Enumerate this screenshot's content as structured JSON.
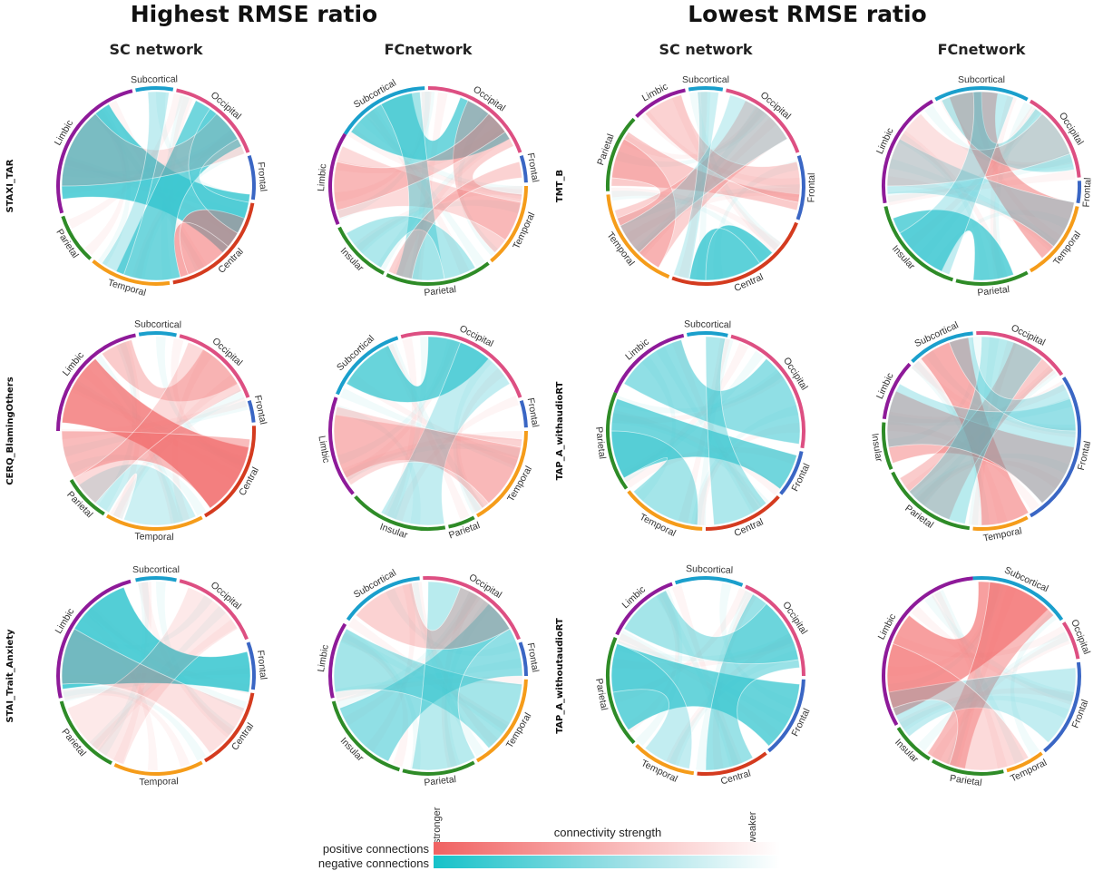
{
  "headers": {
    "left_title": "Highest RMSE ratio",
    "right_title": "Lowest RMSE ratio",
    "columns": [
      "SC network",
      "FCnetwork",
      "SC network",
      "FCnetwork"
    ]
  },
  "rows": [
    [
      "STAXI_TAR",
      "TMT_B"
    ],
    [
      "CERQ_BlamingOthers",
      "TAP_A_withaudioRT"
    ],
    [
      "STAI_Trait_Anxiety",
      "TAP_A_withoutaudioRT"
    ]
  ],
  "region_colors": {
    "Subcortical": "#1a9fcc",
    "Occipital": "#dd4f82",
    "Frontal": "#3a66c4",
    "Central": "#d43b1f",
    "Temporal": "#f59c1a",
    "Parietal": "#2e8b27",
    "Limbic": "#8e1a99",
    "Insular": "#2e8b27"
  },
  "ribbon_colors": {
    "pos": "#f26b6b",
    "neg": "#35c5cf"
  },
  "legend": {
    "title": "connectivity strength",
    "stronger": "stronger",
    "weaker": "weaker",
    "positive_label": "positive connections",
    "negative_label": "negative connections"
  },
  "diagrams": [
    {
      "arcs": [
        [
          "Subcortical",
          -12,
          10
        ],
        [
          "Occipital",
          12,
          70
        ],
        [
          "Frontal",
          72,
          98
        ],
        [
          "Central",
          100,
          170
        ],
        [
          "Temporal",
          172,
          220
        ],
        [
          "Parietal",
          222,
          252
        ],
        [
          "Limbic",
          254,
          346
        ]
      ],
      "ribbons": [
        [
          262,
          330,
          95,
          135,
          "neg",
          0.8
        ],
        [
          25,
          65,
          165,
          205,
          "neg",
          0.7
        ],
        [
          110,
          165,
          130,
          160,
          "pos",
          0.55
        ],
        [
          270,
          320,
          40,
          70,
          "pos",
          0.2
        ],
        [
          -5,
          8,
          200,
          215,
          "neg",
          0.3
        ],
        [
          35,
          60,
          100,
          120,
          "neg",
          0.25
        ]
      ]
    },
    {
      "arcs": [
        [
          "Subcortical",
          -58,
          -2
        ],
        [
          "Occipital",
          0,
          70
        ],
        [
          "Frontal",
          72,
          88
        ],
        [
          "Temporal",
          90,
          140
        ],
        [
          "Parietal",
          142,
          205
        ],
        [
          "Insular",
          207,
          245
        ],
        [
          "Limbic",
          247,
          302
        ]
      ],
      "ribbons": [
        [
          -55,
          -10,
          20,
          60,
          "neg",
          0.7
        ],
        [
          95,
          135,
          25,
          65,
          "pos",
          0.3
        ],
        [
          250,
          295,
          100,
          125,
          "pos",
          0.25
        ],
        [
          170,
          200,
          -30,
          -5,
          "neg",
          0.45
        ],
        [
          210,
          240,
          150,
          170,
          "neg",
          0.4
        ],
        [
          255,
          285,
          40,
          55,
          "pos",
          0.3
        ],
        [
          75,
          85,
          190,
          205,
          "pos",
          0.3
        ]
      ]
    },
    {
      "arcs": [
        [
          "Limbic",
          -45,
          -12
        ],
        [
          "Subcortical",
          -10,
          10
        ],
        [
          "Occipital",
          12,
          70
        ],
        [
          "Frontal",
          72,
          110
        ],
        [
          "Central",
          112,
          200
        ],
        [
          "Temporal",
          202,
          265
        ],
        [
          "Parietal",
          267,
          313
        ]
      ],
      "ribbons": [
        [
          135,
          190,
          145,
          180,
          "neg",
          0.8
        ],
        [
          270,
          305,
          95,
          105,
          "pos",
          0.35
        ],
        [
          210,
          255,
          25,
          60,
          "pos",
          0.3
        ],
        [
          -40,
          -15,
          75,
          100,
          "pos",
          0.3
        ],
        [
          275,
          300,
          210,
          250,
          "pos",
          0.3
        ],
        [
          15,
          60,
          225,
          245,
          "neg",
          0.25
        ],
        [
          -5,
          8,
          190,
          200,
          "neg",
          0.25
        ]
      ]
    },
    {
      "arcs": [
        [
          "Subcortical",
          -28,
          28
        ],
        [
          "Occipital",
          30,
          85
        ],
        [
          "Frontal",
          87,
          100
        ],
        [
          "Temporal",
          102,
          150
        ],
        [
          "Parietal",
          152,
          195
        ],
        [
          "Insular",
          197,
          258
        ],
        [
          "Limbic",
          260,
          330
        ]
      ],
      "ribbons": [
        [
          205,
          250,
          160,
          185,
          "neg",
          0.75
        ],
        [
          -20,
          10,
          100,
          140,
          "pos",
          0.5
        ],
        [
          35,
          80,
          -25,
          0,
          "neg",
          0.35
        ],
        [
          265,
          300,
          100,
          130,
          "neg",
          0.3
        ],
        [
          270,
          320,
          40,
          70,
          "pos",
          0.2
        ],
        [
          -5,
          20,
          200,
          240,
          "neg",
          0.3
        ]
      ]
    },
    {
      "arcs": [
        [
          "Limbic",
          -90,
          -12
        ],
        [
          "Subcortical",
          -10,
          12
        ],
        [
          "Occipital",
          14,
          70
        ],
        [
          "Frontal",
          72,
          85
        ],
        [
          "Central",
          87,
          150
        ],
        [
          "Temporal",
          152,
          210
        ],
        [
          "Parietal",
          212,
          240
        ]
      ],
      "ribbons": [
        [
          -85,
          -40,
          100,
          145,
          "pos",
          0.75
        ],
        [
          95,
          145,
          240,
          270,
          "pos",
          0.45
        ],
        [
          -35,
          -15,
          30,
          60,
          "pos",
          0.35
        ],
        [
          155,
          200,
          210,
          235,
          "neg",
          0.25
        ],
        [
          20,
          65,
          220,
          240,
          "pos",
          0.25
        ]
      ]
    },
    {
      "arcs": [
        [
          "Subcortical",
          -68,
          -18
        ],
        [
          "Occipital",
          -16,
          70
        ],
        [
          "Frontal",
          72,
          88
        ],
        [
          "Temporal",
          90,
          150
        ],
        [
          "Parietal",
          152,
          168
        ],
        [
          "Insular",
          170,
          228
        ],
        [
          "Limbic",
          230,
          290
        ]
      ],
      "ribbons": [
        [
          -60,
          -25,
          0,
          40,
          "neg",
          0.75
        ],
        [
          95,
          145,
          240,
          280,
          "pos",
          0.3
        ],
        [
          20,
          60,
          170,
          210,
          "neg",
          0.3
        ],
        [
          235,
          285,
          100,
          140,
          "pos",
          0.25
        ]
      ]
    },
    {
      "arcs": [
        [
          "Limbic",
          -67,
          -13
        ],
        [
          "Subcortical",
          -11,
          13
        ],
        [
          "Occipital",
          15,
          100
        ],
        [
          "Frontal",
          102,
          130
        ],
        [
          "Central",
          132,
          180
        ],
        [
          "Temporal",
          182,
          232
        ],
        [
          "Parietal",
          234,
          293
        ]
      ],
      "ribbons": [
        [
          -60,
          -15,
          40,
          98,
          "neg",
          0.55
        ],
        [
          240,
          290,
          105,
          128,
          "neg",
          0.7
        ],
        [
          140,
          175,
          0,
          12,
          "neg",
          0.4
        ],
        [
          185,
          230,
          240,
          270,
          "neg",
          0.45
        ]
      ]
    },
    {
      "arcs": [
        [
          "Subcortical",
          -45,
          -5
        ],
        [
          "Occipital",
          -3,
          55
        ],
        [
          "Frontal",
          57,
          150
        ],
        [
          "Temporal",
          152,
          185
        ],
        [
          "Parietal",
          187,
          245
        ],
        [
          "Insular",
          247,
          275
        ],
        [
          "Limbic",
          277,
          313
        ]
      ],
      "ribbons": [
        [
          -40,
          -8,
          150,
          180,
          "pos",
          0.55
        ],
        [
          250,
          295,
          100,
          140,
          "pos",
          0.45
        ],
        [
          200,
          240,
          20,
          50,
          "pos",
          0.35
        ],
        [
          0,
          40,
          190,
          230,
          "neg",
          0.35
        ],
        [
          70,
          140,
          260,
          300,
          "neg",
          0.3
        ],
        [
          -20,
          -5,
          60,
          90,
          "neg",
          0.3
        ]
      ]
    },
    {
      "arcs": [
        [
          "Subcortical",
          -12,
          12
        ],
        [
          "Occipital",
          14,
          68
        ],
        [
          "Frontal",
          70,
          98
        ],
        [
          "Central",
          100,
          150
        ],
        [
          "Temporal",
          152,
          205
        ],
        [
          "Parietal",
          207,
          255
        ],
        [
          "Limbic",
          257,
          345
        ]
      ],
      "ribbons": [
        [
          262,
          340,
          75,
          100,
          "neg",
          0.85
        ],
        [
          20,
          60,
          200,
          250,
          "pos",
          0.15
        ],
        [
          110,
          145,
          265,
          300,
          "pos",
          0.2
        ]
      ]
    },
    {
      "arcs": [
        [
          "Subcortical",
          -55,
          -5
        ],
        [
          "Occipital",
          -3,
          68
        ],
        [
          "Frontal",
          70,
          90
        ],
        [
          "Temporal",
          92,
          150
        ],
        [
          "Parietal",
          152,
          195
        ],
        [
          "Insular",
          197,
          255
        ],
        [
          "Limbic",
          257,
          302
        ]
      ],
      "ribbons": [
        [
          205,
          250,
          40,
          90,
          "neg",
          0.55
        ],
        [
          260,
          300,
          95,
          140,
          "neg",
          0.45
        ],
        [
          0,
          60,
          150,
          190,
          "neg",
          0.35
        ],
        [
          -50,
          -10,
          20,
          60,
          "pos",
          0.3
        ]
      ]
    },
    {
      "arcs": [
        [
          "Limbic",
          -65,
          -20
        ],
        [
          "Subcortical",
          -18,
          22
        ],
        [
          "Occipital",
          24,
          90
        ],
        [
          "Frontal",
          92,
          140
        ],
        [
          "Central",
          142,
          185
        ],
        [
          "Temporal",
          187,
          225
        ],
        [
          "Parietal",
          227,
          293
        ]
      ],
      "ribbons": [
        [
          235,
          290,
          95,
          138,
          "neg",
          0.75
        ],
        [
          30,
          85,
          150,
          180,
          "neg",
          0.5
        ],
        [
          -60,
          -25,
          40,
          80,
          "neg",
          0.45
        ],
        [
          190,
          220,
          260,
          290,
          "neg",
          0.3
        ]
      ]
    },
    {
      "arcs": [
        [
          "Subcortical",
          -5,
          55
        ],
        [
          "Occipital",
          57,
          80
        ],
        [
          "Frontal",
          82,
          140
        ],
        [
          "Temporal",
          142,
          165
        ],
        [
          "Parietal",
          167,
          210
        ],
        [
          "Insular",
          212,
          238
        ],
        [
          "Limbic",
          240,
          355
        ]
      ],
      "ribbons": [
        [
          245,
          310,
          -2,
          45,
          "pos",
          0.65
        ],
        [
          5,
          50,
          190,
          215,
          "pos",
          0.45
        ],
        [
          85,
          135,
          230,
          260,
          "neg",
          0.3
        ],
        [
          150,
          200,
          250,
          290,
          "pos",
          0.25
        ]
      ]
    }
  ]
}
